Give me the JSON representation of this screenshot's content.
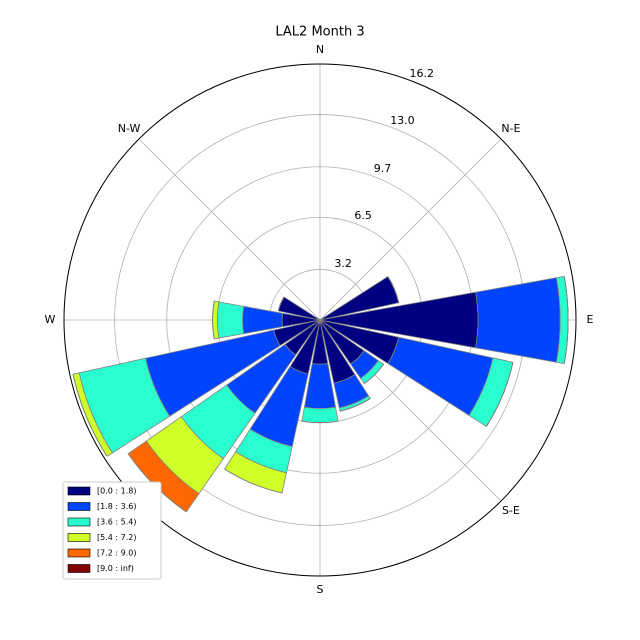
{
  "chart_data": {
    "type": "windrose",
    "title": "LAL2 Month 3",
    "angle_labels": [
      "N",
      "N-E",
      "E",
      "S-E",
      "S",
      "S-W",
      "W",
      "N-W"
    ],
    "series": [
      {
        "name": "[0.0 : 1.8)",
        "color": "#000080",
        "values": [
          0,
          0,
          0,
          5.1,
          10,
          5.1,
          3.4,
          4.1,
          2.8,
          3.5,
          2.7,
          3.0,
          2.4,
          2.7,
          0,
          0
        ]
      },
      {
        "name": "[1.8 : 3.6)",
        "color": "#0044ff",
        "values": [
          0,
          0,
          0,
          0,
          5.2,
          6.1,
          1.1,
          1.6,
          2.8,
          4.7,
          4.5,
          8.3,
          2.5,
          0,
          0,
          0
        ]
      },
      {
        "name": "[3.6 : 5.4)",
        "color": "#29ffce",
        "values": [
          0,
          0,
          0,
          0,
          0.5,
          1.3,
          0.4,
          0.2,
          0.9,
          1.7,
          3.5,
          4.3,
          1.6,
          0,
          0,
          0
        ]
      },
      {
        "name": "[5.4 : 7.2)",
        "color": "#ceff29",
        "values": [
          0,
          0,
          0,
          0,
          0,
          0,
          0,
          0,
          0,
          1.3,
          2.7,
          0.4,
          0.3,
          0,
          0,
          0
        ]
      },
      {
        "name": "[7.2 : 9.0)",
        "color": "#ff6800",
        "values": [
          0,
          0,
          0,
          0,
          0,
          0,
          0,
          0,
          0,
          0,
          1.4,
          0,
          0,
          0,
          0,
          0
        ]
      },
      {
        "name": "[9.0 : inf)",
        "color": "#800000",
        "values": [
          0,
          0,
          0,
          0,
          0,
          0,
          0,
          0,
          0,
          0,
          0,
          0,
          0,
          0,
          0,
          0
        ]
      }
    ],
    "ylim": [
      0,
      16.2
    ],
    "yticks": [
      3.2,
      6.5,
      9.7,
      {
        "value": 13.0,
        "label": "13.0"
      },
      16.2
    ],
    "grid": true,
    "legend": "lower left"
  }
}
